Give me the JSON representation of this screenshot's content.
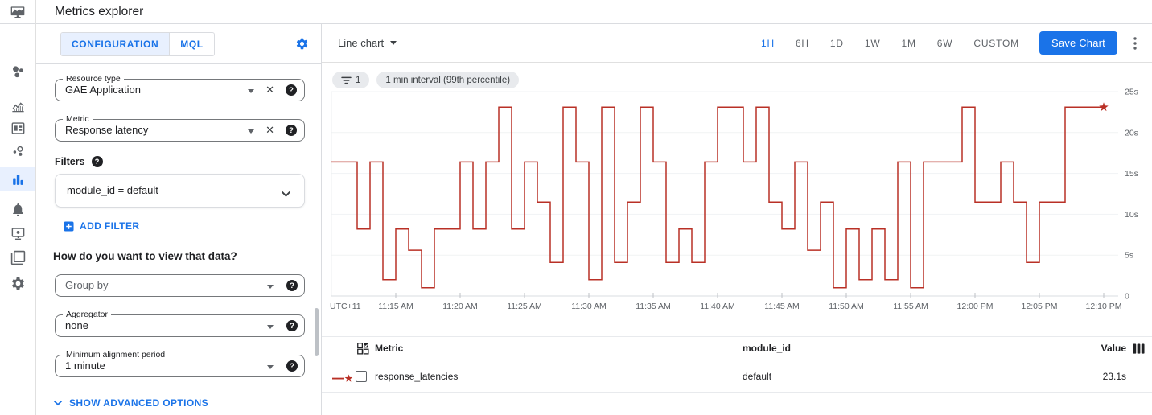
{
  "header": {
    "title": "Metrics explorer"
  },
  "sidebar": {
    "items": [
      {
        "icon": "dots-cluster-icon",
        "selected": false
      },
      {
        "icon": "trend-chart-icon",
        "selected": false
      },
      {
        "icon": "dashboard-icon",
        "selected": false
      },
      {
        "icon": "bubble-services-icon",
        "selected": false
      },
      {
        "icon": "equalizer-icon",
        "selected": true
      },
      {
        "icon": "bell-icon",
        "selected": false
      },
      {
        "icon": "uptime-monitor-icon",
        "selected": false
      },
      {
        "icon": "layers-copy-icon",
        "selected": false
      },
      {
        "icon": "gear-icon",
        "selected": false
      }
    ]
  },
  "config_panel": {
    "tabs": [
      {
        "label": "CONFIGURATION",
        "selected": true
      },
      {
        "label": "MQL",
        "selected": false
      }
    ],
    "resource_type": {
      "label": "Resource type",
      "value": "GAE Application"
    },
    "metric": {
      "label": "Metric",
      "value": "Response latency"
    },
    "filters_label": "Filters",
    "filter_value": "module_id = default",
    "add_filter_label": "ADD FILTER",
    "view_question": "How do you want to view that data?",
    "group_by": {
      "placeholder": "Group by"
    },
    "aggregator": {
      "label": "Aggregator",
      "value": "none"
    },
    "min_alignment": {
      "label": "Minimum alignment period",
      "value": "1 minute"
    },
    "show_advanced_label": "SHOW ADVANCED OPTIONS"
  },
  "chart_panel": {
    "chart_type_label": "Line chart",
    "time_ranges": [
      "1H",
      "6H",
      "1D",
      "1W",
      "1M",
      "6W",
      "CUSTOM"
    ],
    "selected_range": "1H",
    "save_button_label": "Save Chart",
    "chips": [
      {
        "name": "chip-filter-count",
        "icon": "filter-list-icon",
        "label": "1"
      },
      {
        "name": "chip-interval",
        "icon": null,
        "label": "1 min interval (99th percentile)"
      }
    ]
  },
  "chart_data": {
    "type": "line",
    "line_style": "step-after",
    "title": "",
    "xlabel": "",
    "ylabel": "",
    "x_start": "11:10 AM",
    "x_end": "12:10 PM",
    "interval_minutes": 1,
    "x_tick_labels": [
      "UTC+11",
      "11:15 AM",
      "11:20 AM",
      "11:25 AM",
      "11:30 AM",
      "11:35 AM",
      "11:40 AM",
      "11:45 AM",
      "11:50 AM",
      "11:55 AM",
      "12:00 PM",
      "12:05 PM",
      "12:10 PM"
    ],
    "y_tick_labels": [
      "0",
      "5s",
      "10s",
      "15s",
      "20s",
      "25s"
    ],
    "ylim": [
      0,
      25
    ],
    "grid": "horizontal",
    "legend_position": "table-below",
    "unit": "seconds",
    "series": [
      {
        "name": "response_latencies",
        "color": "#b93026",
        "end_marker": "star",
        "values": [
          16.4,
          16.4,
          8.2,
          16.4,
          2,
          8.2,
          5.6,
          1,
          8.2,
          8.2,
          16.4,
          8.2,
          16.4,
          23.1,
          8.2,
          16.4,
          11.5,
          4.1,
          23.1,
          16.4,
          2,
          23.1,
          4.1,
          11.5,
          23.1,
          16.4,
          4.1,
          8.2,
          4.1,
          16.4,
          23.1,
          23.1,
          16.4,
          23.1,
          11.5,
          8.2,
          16.4,
          5.6,
          11.5,
          1,
          8.2,
          2,
          8.2,
          2,
          16.4,
          1,
          16.4,
          16.4,
          16.4,
          23.1,
          11.5,
          11.5,
          16.4,
          11.5,
          4.1,
          11.5,
          11.5,
          23.1,
          23.1,
          23.1,
          23.1
        ]
      }
    ]
  },
  "table": {
    "headers": {
      "metric": "Metric",
      "module_id": "module_id",
      "value": "Value"
    },
    "rows": [
      {
        "metric": "response_latencies",
        "module_id": "default",
        "value": "23.1s"
      }
    ]
  },
  "colors": {
    "accent": "#1a73e8",
    "selected_tab_bg": "#e8f0fe",
    "series_red": "#b93026",
    "chip_bg": "#e8eaed"
  }
}
